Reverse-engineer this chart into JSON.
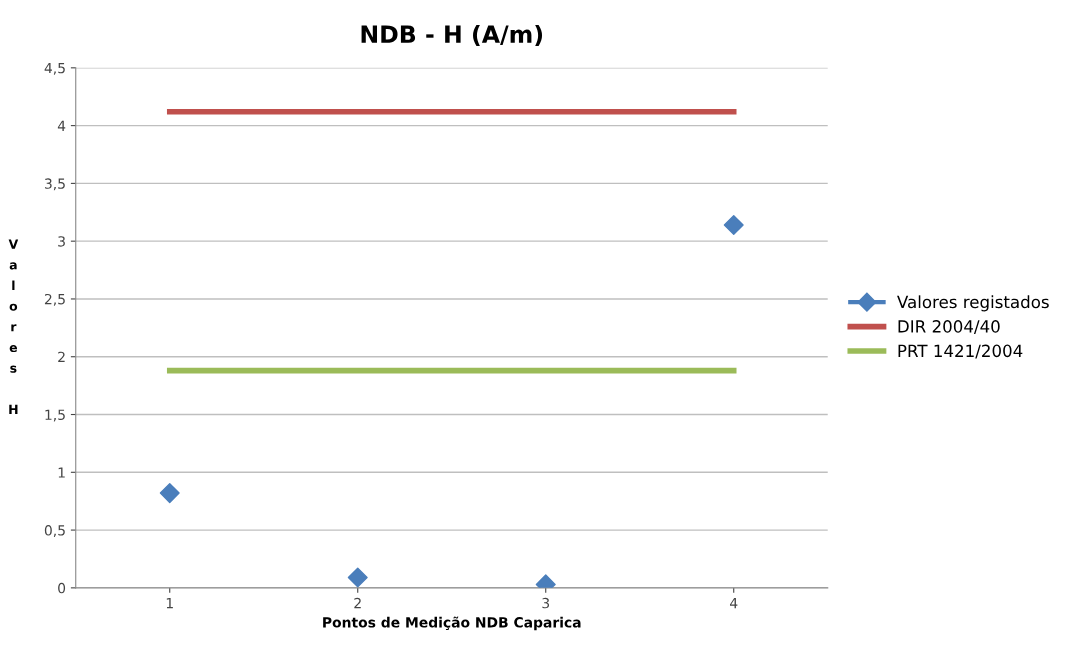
{
  "chart_data": {
    "type": "line",
    "title": "NDB - H (A/m)",
    "xlabel": "Pontos de Medição NDB Caparica",
    "ylabel": "Valores H",
    "categories": [
      "1",
      "2",
      "3",
      "4"
    ],
    "series": [
      {
        "name": "Valores registados",
        "color": "#4a7ebb",
        "type": "scatter",
        "marker": "diamond",
        "values": [
          0.82,
          0.09,
          0.03,
          3.14
        ]
      },
      {
        "name": "DIR 2004/40",
        "color": "#c0504d",
        "values": [
          4.12,
          4.12,
          4.12,
          4.12
        ]
      },
      {
        "name": "PRT 1421/2004",
        "color": "#9bbb59",
        "values": [
          1.88,
          1.88,
          1.88,
          1.88
        ]
      }
    ],
    "ylim": [
      0,
      4.5
    ],
    "yticks": [
      0,
      {
        "value": 0.5,
        "label": "0,5"
      },
      1,
      {
        "value": 1.5,
        "label": "1,5"
      },
      2,
      {
        "value": 2.5,
        "label": "2,5"
      },
      3,
      {
        "value": 3.5,
        "label": "3,5"
      },
      4,
      {
        "value": 4.5,
        "label": "4,5"
      }
    ],
    "grid": "y",
    "legend": "right"
  }
}
